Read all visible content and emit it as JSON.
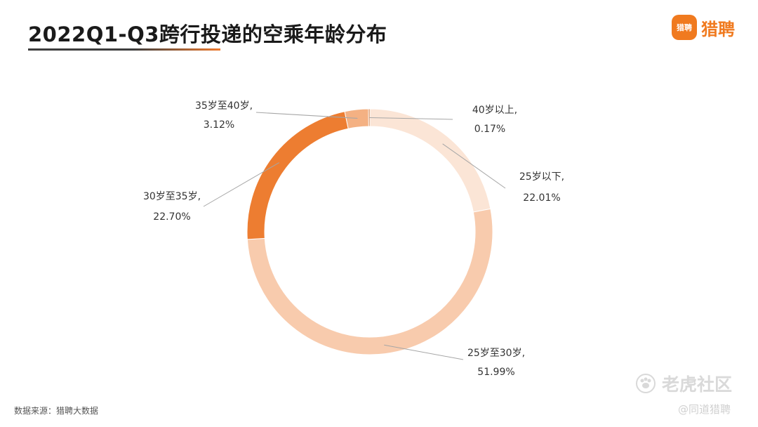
{
  "header": {
    "title": "2022Q1-Q3跨行投递的空乘年龄分布",
    "logo_text": "猎聘",
    "logo_mark_text": "猎聘"
  },
  "chart_data": {
    "type": "pie",
    "variant": "donut",
    "title": "2022Q1-Q3跨行投递的空乘年龄分布",
    "slices": [
      {
        "name": "25岁以下,",
        "value": 22.01,
        "label": "22.01%",
        "color": "#fbe5d6"
      },
      {
        "name": "25岁至30岁,",
        "value": 51.99,
        "label": "51.99%",
        "color": "#f8cbad"
      },
      {
        "name": "30岁至35岁,",
        "value": 22.7,
        "label": "22.70%",
        "color": "#ed7d31"
      },
      {
        "name": "35岁至40岁,",
        "value": 3.12,
        "label": "3.12%",
        "color": "#f4b183"
      },
      {
        "name": "40岁以上,",
        "value": 0.17,
        "label": "0.17%",
        "color": "#c55a11"
      }
    ],
    "start_angle_deg": 0,
    "direction": "clockwise",
    "legend": "none"
  },
  "footer": {
    "source": "数据来源：猎聘大数据",
    "watermark": "老虎社区",
    "handle": "@同道猎聘"
  }
}
